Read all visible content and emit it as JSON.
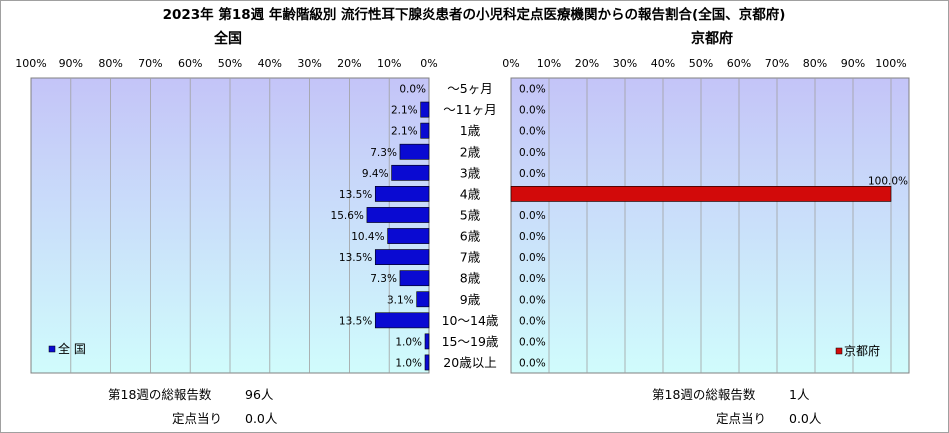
{
  "title": "2023年 第18週 年齢階級別 流行性耳下腺炎患者の小児科定点医療機関からの報告割合(全国、京都府)",
  "colors": {
    "bg_top": "#c4c4f8",
    "bg_bottom": "#d0fcfc",
    "national_bar": "#0a0ad2",
    "kyoto_bar": "#d20a0a",
    "grid": "#a0a0a0"
  },
  "chart_data": [
    {
      "type": "bar",
      "orientation": "horizontal",
      "direction": "right-to-left",
      "title": "全国",
      "categories": [
        "～5ヶ月",
        "～11ヶ月",
        "1歳",
        "2歳",
        "3歳",
        "4歳",
        "5歳",
        "6歳",
        "7歳",
        "8歳",
        "9歳",
        "10～14歳",
        "15～19歳",
        "20歳以上"
      ],
      "series": [
        {
          "name": "全 国",
          "values": [
            0.0,
            2.1,
            2.1,
            7.3,
            9.4,
            13.5,
            15.6,
            10.4,
            13.5,
            7.3,
            3.1,
            13.5,
            1.0,
            1.0
          ]
        }
      ],
      "data_labels": [
        "0.0%",
        "2.1%",
        "2.1%",
        "7.3%",
        "9.4%",
        "13.5%",
        "15.6%",
        "10.4%",
        "13.5%",
        "7.3%",
        "3.1%",
        "13.5%",
        "1.0%",
        "1.0%"
      ],
      "xlim": [
        0,
        100
      ],
      "xticks": [
        "100%",
        "90%",
        "80%",
        "70%",
        "60%",
        "50%",
        "40%",
        "30%",
        "20%",
        "10%",
        "0%"
      ],
      "grid": true,
      "legend": "bottom-left"
    },
    {
      "type": "bar",
      "orientation": "horizontal",
      "direction": "left-to-right",
      "title": "京都府",
      "categories": [
        "～5ヶ月",
        "～11ヶ月",
        "1歳",
        "2歳",
        "3歳",
        "4歳",
        "5歳",
        "6歳",
        "7歳",
        "8歳",
        "9歳",
        "10～14歳",
        "15～19歳",
        "20歳以上"
      ],
      "series": [
        {
          "name": "京都府",
          "values": [
            0.0,
            0.0,
            0.0,
            0.0,
            0.0,
            100.0,
            0.0,
            0.0,
            0.0,
            0.0,
            0.0,
            0.0,
            0.0,
            0.0
          ]
        }
      ],
      "data_labels": [
        "0.0%",
        "0.0%",
        "0.0%",
        "0.0%",
        "0.0%",
        "100.0%",
        "0.0%",
        "0.0%",
        "0.0%",
        "0.0%",
        "0.0%",
        "0.0%",
        "0.0%",
        "0.0%"
      ],
      "xlim": [
        0,
        100
      ],
      "xticks": [
        "0%",
        "10%",
        "20%",
        "30%",
        "40%",
        "50%",
        "60%",
        "70%",
        "80%",
        "90%",
        "100%"
      ],
      "grid": true,
      "legend": "bottom-right"
    }
  ],
  "summary": {
    "national": {
      "total_label": "第18週の総報告数",
      "total_value": "96人",
      "per_label": "定点当り",
      "per_value": "0.0人"
    },
    "kyoto": {
      "total_label": "第18週の総報告数",
      "total_value": "1人",
      "per_label": "定点当り",
      "per_value": "0.0人"
    }
  }
}
